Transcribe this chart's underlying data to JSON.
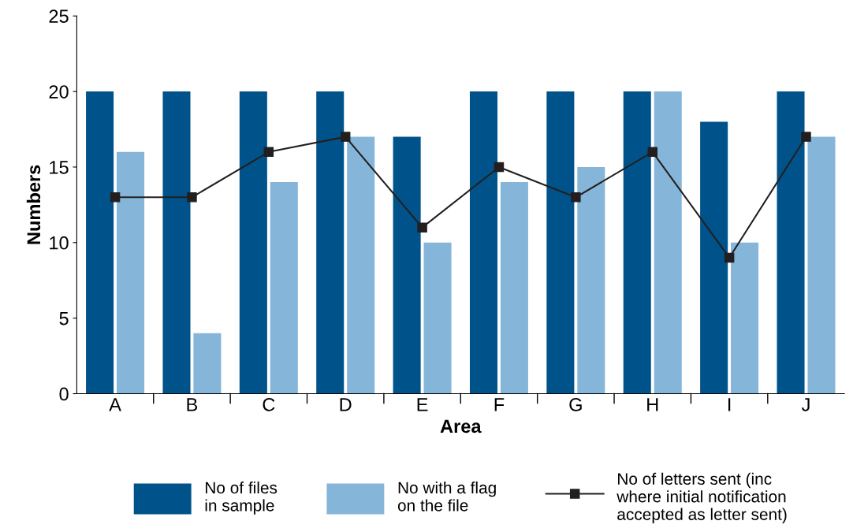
{
  "chart_data": {
    "type": "bar",
    "xlabel": "Area",
    "ylabel": "Numbers",
    "categories": [
      "A",
      "B",
      "C",
      "D",
      "E",
      "F",
      "G",
      "H",
      "I",
      "J"
    ],
    "series": [
      {
        "name": "No of files\nin sample",
        "color": "#00538a",
        "values": [
          20,
          20,
          20,
          20,
          17,
          20,
          20,
          20,
          18,
          20
        ]
      },
      {
        "name": "No with a flag\non the file",
        "color": "#85b6d9",
        "values": [
          16,
          4,
          14,
          17,
          10,
          14,
          15,
          20,
          10,
          17
        ]
      },
      {
        "name": "No of letters sent (inc\nwhere initial notification\naccepted as letter sent)",
        "type": "line",
        "color": "#231f20",
        "marker": "square",
        "values": [
          13,
          13,
          16,
          17,
          11,
          15,
          13,
          16,
          9,
          17
        ]
      }
    ],
    "ylim": [
      0,
      25
    ],
    "yticks": [
      0,
      5,
      10,
      15,
      20,
      25
    ],
    "grid": false,
    "legend": "bottom"
  }
}
